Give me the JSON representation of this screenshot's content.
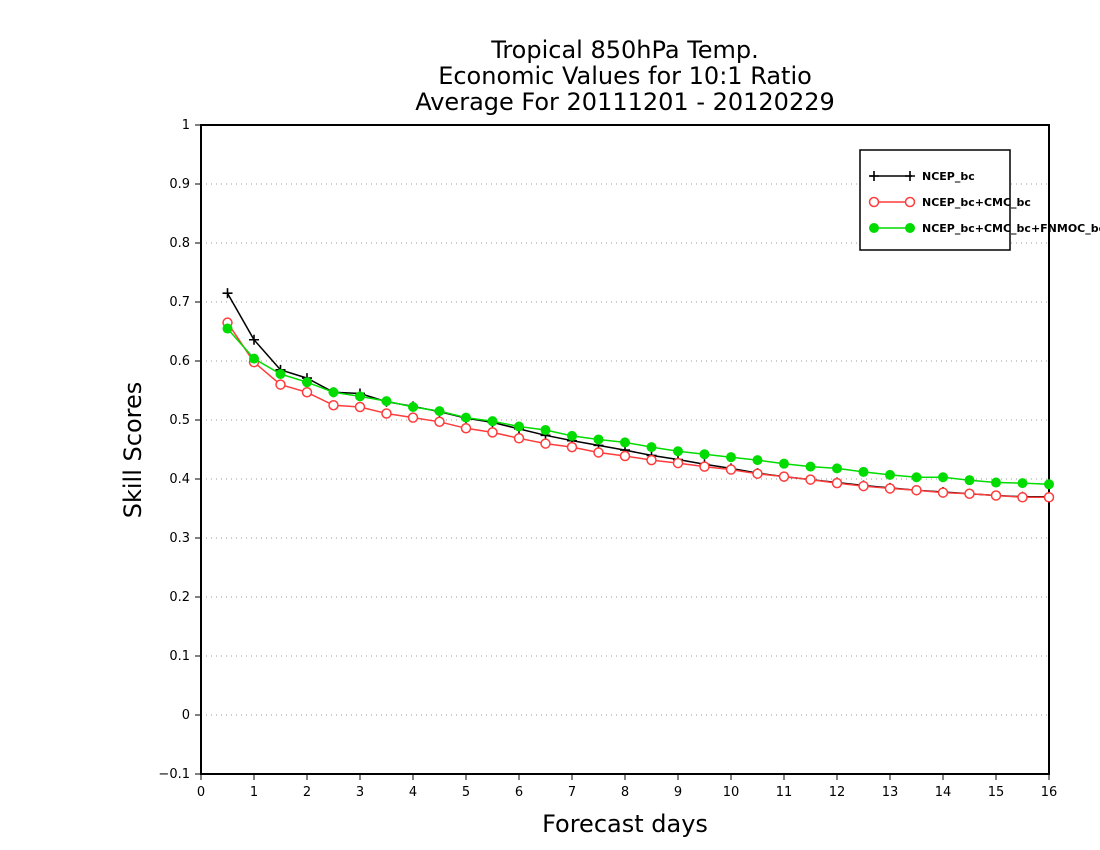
{
  "chart_data": {
    "type": "line",
    "title_lines": [
      "Tropical 850hPa Temp.",
      "Economic Values for 10:1 Ratio",
      "Average For 20111201 - 20120229"
    ],
    "xlabel": "Forecast days",
    "ylabel": "Skill Scores",
    "xlim": [
      0,
      16
    ],
    "ylim": [
      -0.1,
      1
    ],
    "x_ticks": [
      0,
      1,
      2,
      3,
      4,
      5,
      6,
      7,
      8,
      9,
      10,
      11,
      12,
      13,
      14,
      15,
      16
    ],
    "y_ticks": [
      -0.1,
      0,
      0.1,
      0.2,
      0.3,
      0.4,
      0.5,
      0.6,
      0.7,
      0.8,
      0.9,
      1
    ],
    "x_tick_labels": [
      "0",
      "1",
      "2",
      "3",
      "4",
      "5",
      "6",
      "7",
      "8",
      "9",
      "10",
      "11",
      "12",
      "13",
      "14",
      "15",
      "16"
    ],
    "y_tick_labels": [
      "−0.1",
      "0",
      "0.1",
      "0.2",
      "0.3",
      "0.4",
      "0.5",
      "0.6",
      "0.7",
      "0.8",
      "0.9",
      "1"
    ],
    "grid": "horizontal dotted",
    "legend_position": "top-right",
    "x": [
      0.5,
      1,
      1.5,
      2,
      2.5,
      3,
      3.5,
      4,
      4.5,
      5,
      5.5,
      6,
      6.5,
      7,
      7.5,
      8,
      8.5,
      9,
      9.5,
      10,
      10.5,
      11,
      11.5,
      12,
      12.5,
      13,
      13.5,
      14,
      14.5,
      15,
      15.5,
      16
    ],
    "series": [
      {
        "name": "NCEP_bc",
        "color": "#000000",
        "marker": "plus",
        "values": [
          0.715,
          0.636,
          0.585,
          0.571,
          0.547,
          0.545,
          0.531,
          0.523,
          0.514,
          0.503,
          0.496,
          0.485,
          0.474,
          0.465,
          0.457,
          0.449,
          0.44,
          0.433,
          0.425,
          0.418,
          0.41,
          0.404,
          0.399,
          0.394,
          0.389,
          0.385,
          0.381,
          0.378,
          0.375,
          0.372,
          0.37,
          0.37
        ]
      },
      {
        "name": "NCEP_bc+CMC_bc",
        "color": "#ff3c3c",
        "marker": "open-circle",
        "values": [
          0.665,
          0.598,
          0.56,
          0.547,
          0.525,
          0.522,
          0.511,
          0.504,
          0.497,
          0.486,
          0.479,
          0.469,
          0.46,
          0.454,
          0.445,
          0.439,
          0.432,
          0.427,
          0.421,
          0.416,
          0.409,
          0.404,
          0.399,
          0.393,
          0.388,
          0.384,
          0.381,
          0.377,
          0.375,
          0.372,
          0.369,
          0.369
        ]
      },
      {
        "name": "NCEP_bc+CMC_bc+FNMOC_bc",
        "color": "#00dc00",
        "marker": "filled-circle",
        "values": [
          0.655,
          0.604,
          0.578,
          0.564,
          0.547,
          0.54,
          0.532,
          0.522,
          0.515,
          0.504,
          0.498,
          0.489,
          0.483,
          0.473,
          0.467,
          0.462,
          0.454,
          0.447,
          0.442,
          0.437,
          0.432,
          0.426,
          0.421,
          0.418,
          0.412,
          0.407,
          0.403,
          0.403,
          0.398,
          0.394,
          0.393,
          0.391
        ]
      }
    ]
  }
}
